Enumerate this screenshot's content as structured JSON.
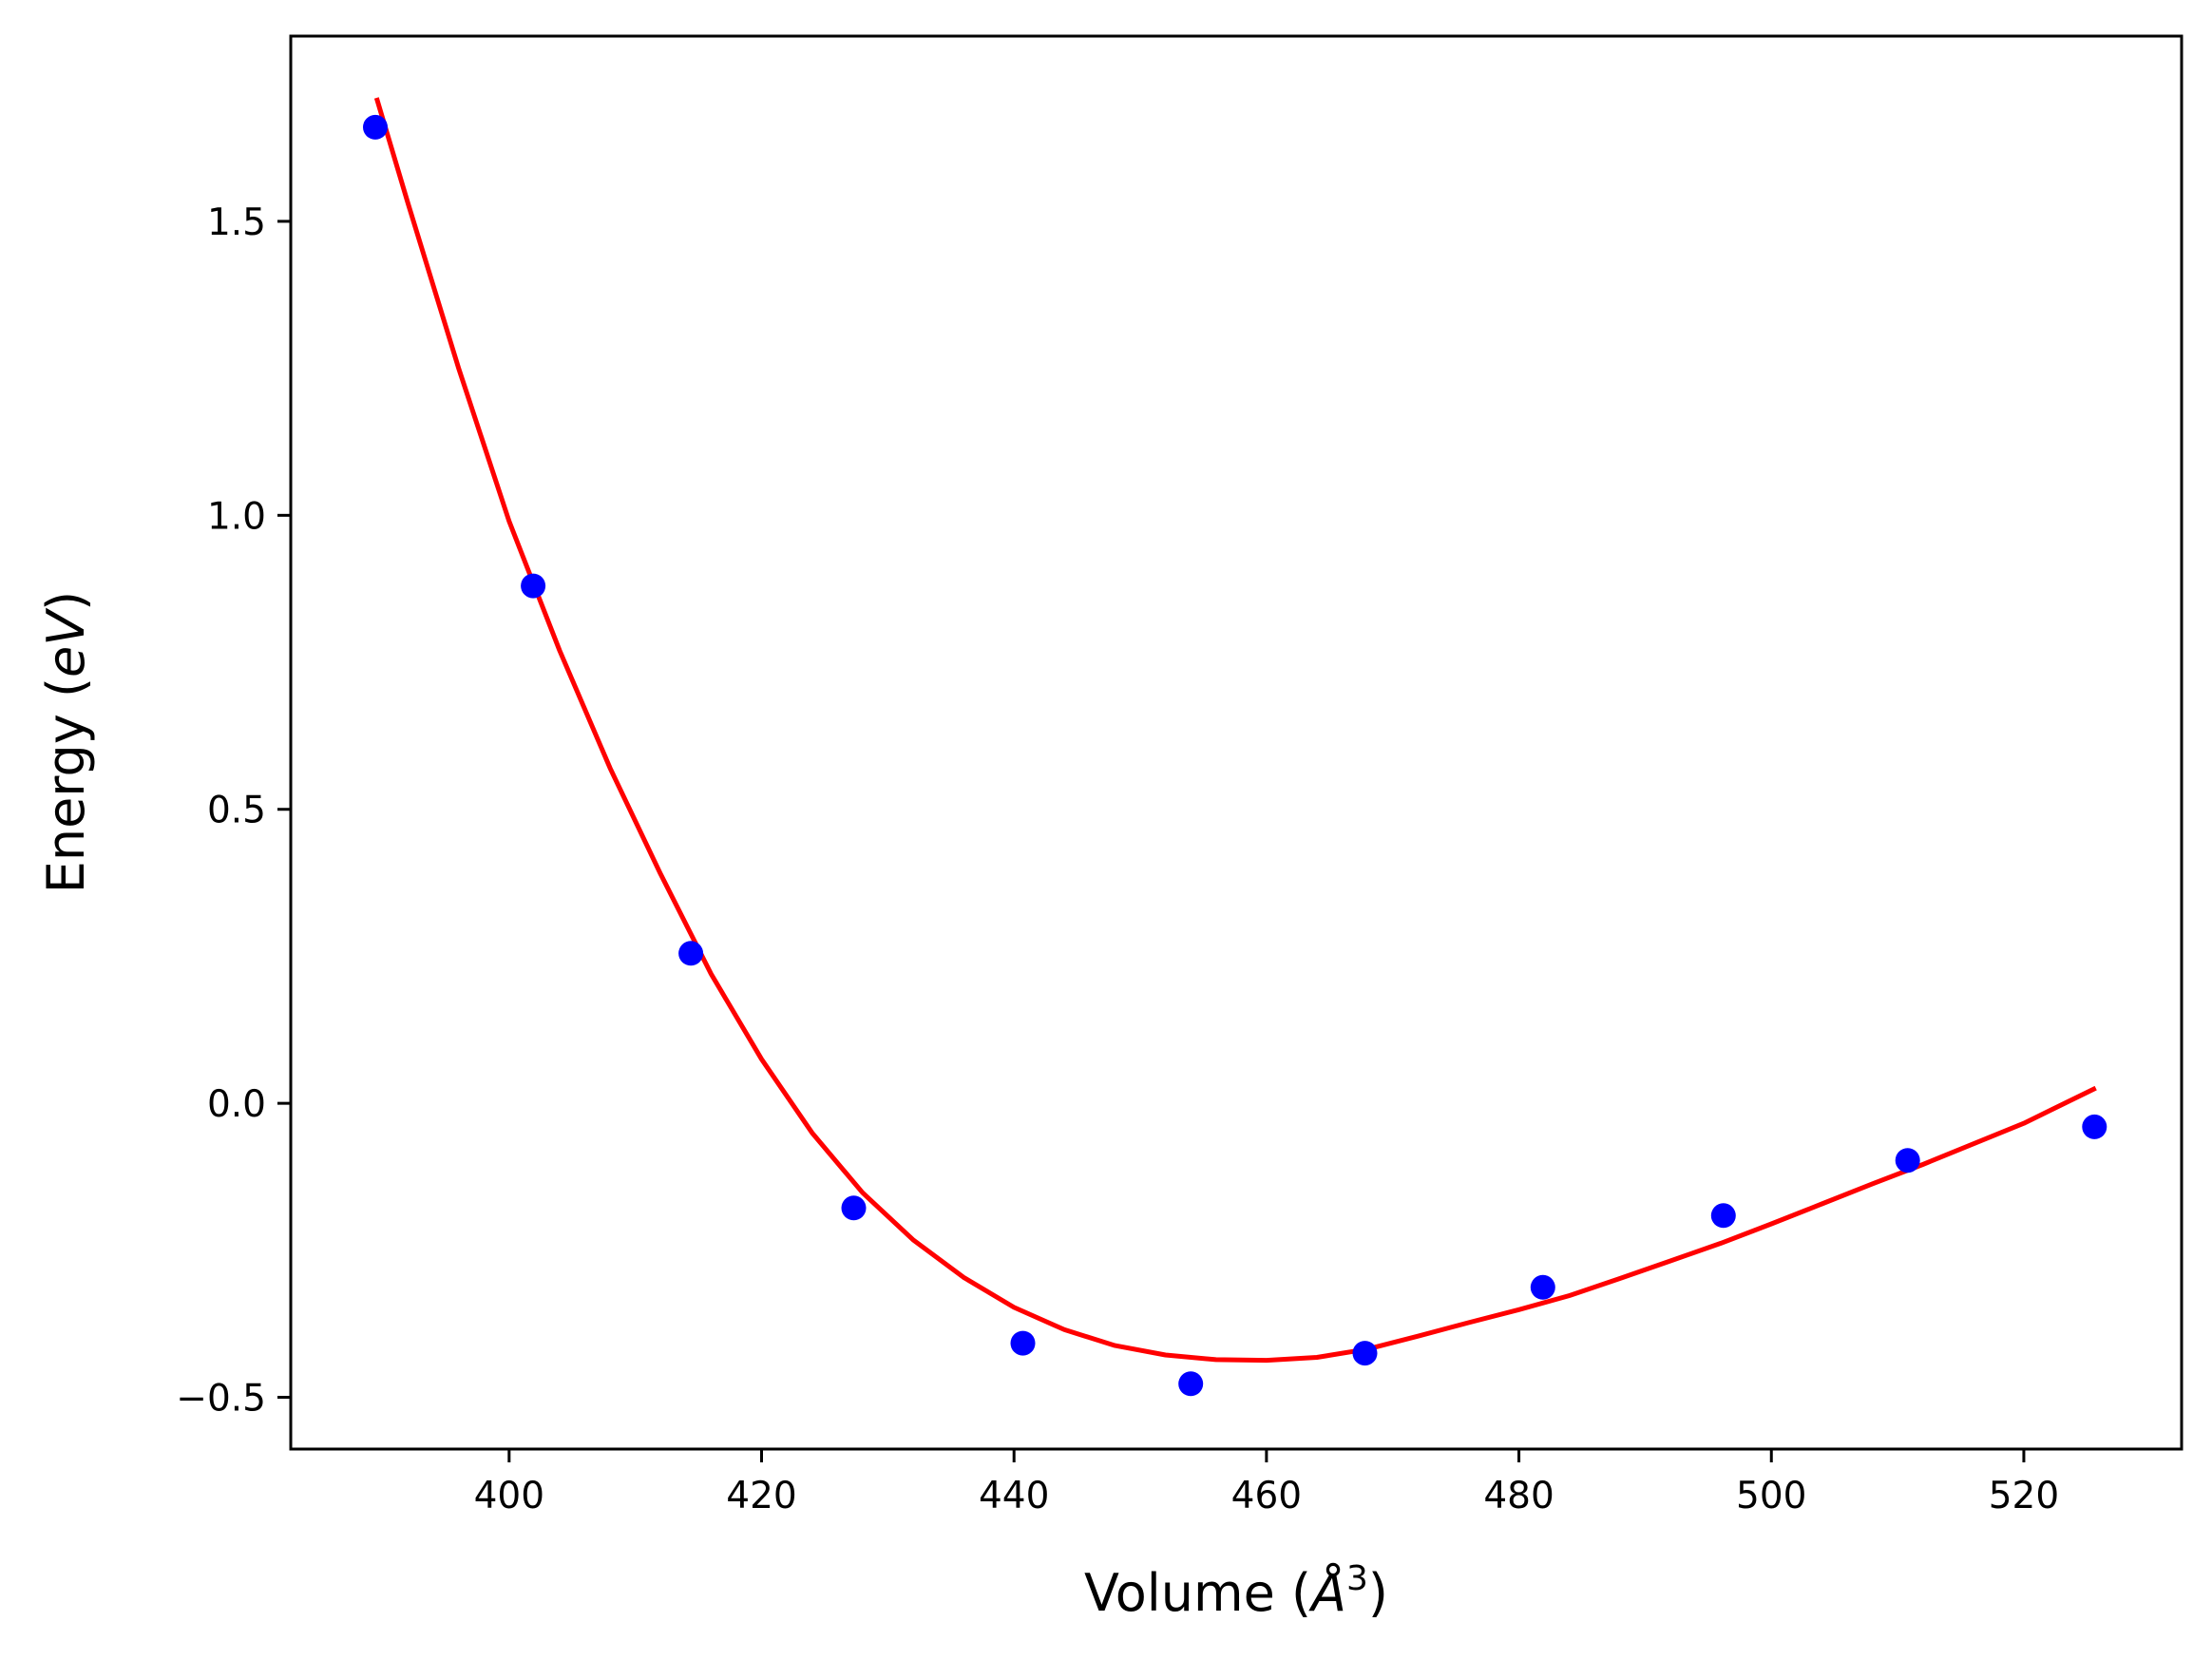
{
  "chart_data": {
    "type": "scatter",
    "xlabel": "Volume (",
    "xlabel_unit": "Å",
    "xlabel_exp": "3",
    "xlabel_close": ")",
    "ylabel": "Energy (",
    "ylabel_unit": "eV",
    "ylabel_close": ")",
    "xlim": [
      382.7,
      532.5
    ],
    "ylim": [
      -0.588,
      1.815
    ],
    "x_ticks": [
      400,
      420,
      440,
      460,
      480,
      500,
      520
    ],
    "x_tick_labels": [
      "400",
      "420",
      "440",
      "460",
      "480",
      "500",
      "520"
    ],
    "y_ticks": [
      -0.5,
      0.0,
      0.5,
      1.0,
      1.5
    ],
    "y_tick_labels": [
      "−0.5",
      "0.0",
      "0.5",
      "1.0",
      "1.5"
    ],
    "grid": false,
    "legend": "none",
    "series": [
      {
        "kind": "points",
        "color": "#0000ff",
        "x": [
          389.4,
          401.9,
          414.4,
          427.3,
          440.7,
          454.0,
          467.8,
          481.9,
          496.2,
          510.8,
          525.6
        ],
        "y": [
          1.66,
          0.88,
          0.255,
          -0.178,
          -0.408,
          -0.477,
          -0.425,
          -0.313,
          -0.191,
          -0.097,
          -0.04
        ]
      },
      {
        "kind": "fit",
        "color": "#ff0000",
        "x": [
          389.5,
          392,
          396,
          400,
          404,
          408,
          412,
          416,
          420,
          424,
          428,
          432,
          436,
          440,
          444,
          448,
          452,
          456,
          460,
          464,
          468,
          472,
          476,
          480,
          484,
          488,
          492,
          496,
          500,
          504,
          508,
          512,
          516,
          520,
          525.7
        ],
        "y": [
          1.71,
          1.53,
          1.25,
          0.99,
          0.77,
          0.57,
          0.39,
          0.22,
          0.075,
          -0.05,
          -0.152,
          -0.232,
          -0.296,
          -0.347,
          -0.385,
          -0.412,
          -0.428,
          -0.436,
          -0.437,
          -0.432,
          -0.418,
          -0.396,
          -0.373,
          -0.351,
          -0.327,
          -0.298,
          -0.268,
          -0.238,
          -0.205,
          -0.171,
          -0.137,
          -0.104,
          -0.069,
          -0.034,
          0.026
        ]
      }
    ]
  }
}
